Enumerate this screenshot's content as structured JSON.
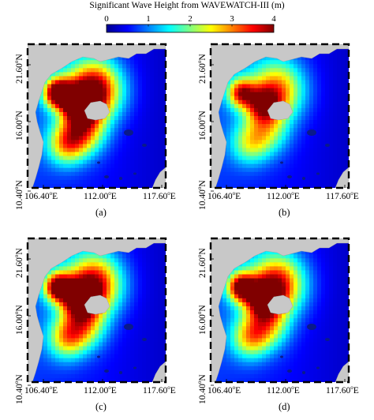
{
  "chart_data": {
    "type": "heatmap",
    "title": "Significant Wave Height from WAVEWATCH-III (m)",
    "colorbar": {
      "ticks": [
        "0",
        "1",
        "2",
        "3",
        "4"
      ],
      "range": [
        0,
        4
      ],
      "colormap": [
        "#00008f",
        "#0000ff",
        "#0080ff",
        "#00ffff",
        "#80ff80",
        "#ffff00",
        "#ff8000",
        "#ff0000",
        "#800000"
      ]
    },
    "x_ticks": [
      "106.40",
      "112.00",
      "117.60"
    ],
    "x_unit": "E",
    "y_ticks": [
      "10.40",
      "16.00",
      "21.60"
    ],
    "y_unit": "N",
    "degree_symbol": "o",
    "land_color": "#c8c8c8",
    "panels": [
      {
        "label": "(a)",
        "intensity": 1.0
      },
      {
        "label": "(b)",
        "intensity": 0.68
      },
      {
        "label": "(c)",
        "intensity": 0.9
      },
      {
        "label": "(d)",
        "intensity": 0.86
      }
    ]
  }
}
